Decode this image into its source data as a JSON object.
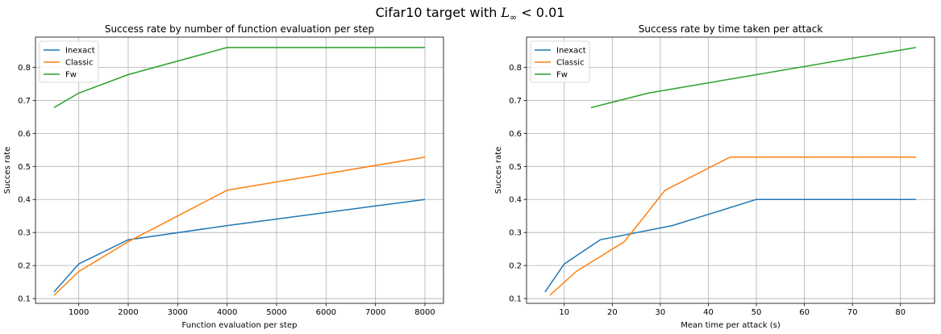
{
  "figure": {
    "suptitle_pre": "Cifar10 target with ",
    "suptitle_math_L": "L",
    "suptitle_math_sub": "∞",
    "suptitle_math_post": " < 0.01"
  },
  "chart_data": [
    {
      "type": "line",
      "title": "Success rate by number of function evaluation per step",
      "xlabel": "Function evaluation per step",
      "ylabel": "Succes rate",
      "xlim": [
        125,
        8375
      ],
      "ylim": [
        0.0855,
        0.8915
      ],
      "xticks": [
        1000,
        2000,
        3000,
        4000,
        5000,
        6000,
        7000,
        8000
      ],
      "yticks": [
        0.1,
        0.2,
        0.3,
        0.4,
        0.5,
        0.6,
        0.7,
        0.8
      ],
      "grid": true,
      "legend_position": "upper-left",
      "series": [
        {
          "name": "Inexact",
          "color": "#1f77b4",
          "x": [
            500,
            1000,
            2000,
            4000,
            8000
          ],
          "y": [
            0.12,
            0.205,
            0.278,
            0.321,
            0.4
          ]
        },
        {
          "name": "Classic",
          "color": "#ff7f0e",
          "x": [
            500,
            1000,
            2000,
            4000,
            8000
          ],
          "y": [
            0.11,
            0.182,
            0.272,
            0.428,
            0.528
          ]
        },
        {
          "name": "Fw",
          "color": "#2ca02c",
          "x": [
            500,
            1000,
            2000,
            4000,
            8000
          ],
          "y": [
            0.678,
            0.722,
            0.778,
            0.86,
            0.86
          ]
        }
      ]
    },
    {
      "type": "line",
      "title": "Success rate by time taken per attack",
      "xlabel": "Mean time per attack (s)",
      "ylabel": "Succes rate",
      "xlim": [
        2.15,
        87.1
      ],
      "ylim": [
        0.0855,
        0.8915
      ],
      "xticks": [
        10,
        20,
        30,
        40,
        50,
        60,
        70,
        80
      ],
      "yticks": [
        0.1,
        0.2,
        0.3,
        0.4,
        0.5,
        0.6,
        0.7,
        0.8
      ],
      "grid": true,
      "legend_position": "upper-left",
      "series": [
        {
          "name": "Inexact",
          "color": "#1f77b4",
          "x": [
            6.0,
            10.0,
            17.5,
            32.5,
            50.0,
            83.2
          ],
          "y": [
            0.12,
            0.205,
            0.278,
            0.321,
            0.4,
            0.4
          ]
        },
        {
          "name": "Classic",
          "color": "#ff7f0e",
          "x": [
            7.0,
            12.5,
            22.5,
            31.0,
            44.5,
            83.2
          ],
          "y": [
            0.11,
            0.182,
            0.272,
            0.428,
            0.528,
            0.528
          ]
        },
        {
          "name": "Fw",
          "color": "#2ca02c",
          "x": [
            15.6,
            27.5,
            83.2
          ],
          "y": [
            0.678,
            0.722,
            0.86
          ]
        }
      ]
    }
  ]
}
